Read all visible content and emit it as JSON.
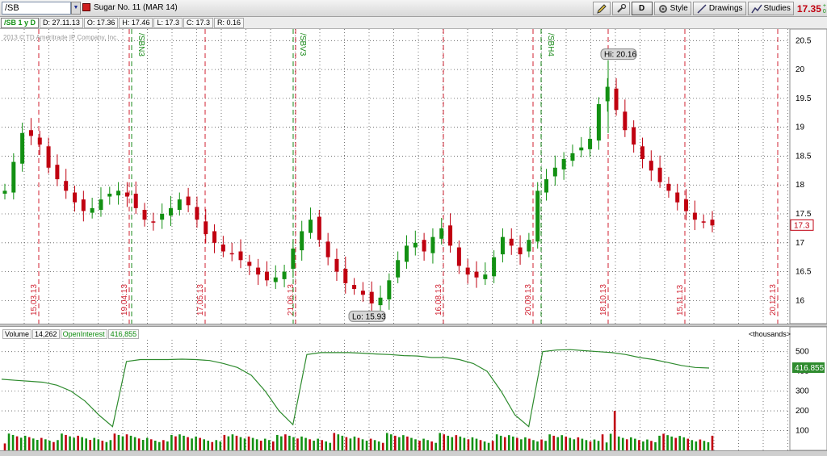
{
  "toolbar": {
    "symbol": "/SB",
    "instrument_name": "Sugar No. 11 (MAR 14)",
    "aggregation": "D",
    "style_label": "Style",
    "drawings_label": "Drawings",
    "studies_label": "Studies",
    "last_price": "17.35",
    "last_change_sign": "+",
    "last_change_extra": "0"
  },
  "infobar": {
    "symbol_period": "/SB 1 y D",
    "date": "D: 27.11.13",
    "open": "O: 17.36",
    "high": "H: 17.46",
    "low": "L: 17.3",
    "close": "C: 17.3",
    "range": "R: 0.16"
  },
  "copyright": "2013 © TD Ameritrade IP Company, Inc.",
  "price_pane": {
    "current_price_tag": "17.3",
    "hi_label": "Hi: 20.16",
    "lo_label": "Lo: 15.93"
  },
  "volume_pane": {
    "volume_label": "Volume",
    "volume_value": "14,262",
    "oi_label": "OpenInterest",
    "oi_value": "416,855",
    "units_label": "<thousands>",
    "oi_tag": "416.855"
  },
  "colors": {
    "up": "#129012",
    "down": "#c00010",
    "grid": "#555555",
    "expiration_line": "#d02030",
    "contract_line": "#1a8a1a",
    "oi_line": "#2e8b2e"
  },
  "chart_data": [
    {
      "type": "candlestick",
      "title": "Sugar No. 11 (MAR 14)",
      "x_axis": "date",
      "ylim": [
        15.6,
        20.7
      ],
      "y_ticks": [
        "16",
        "16.5",
        "17",
        "17.5",
        "18",
        "18.5",
        "19",
        "19.5",
        "20",
        "20.5"
      ],
      "grid": true,
      "hi": 20.16,
      "lo": 15.93,
      "last": 17.3,
      "event_labels": [
        "15.03.13",
        "19.04.13",
        "17.05.13",
        "21.06.13",
        "16.08.13",
        "20.09.13",
        "18.10.13",
        "15.11.13",
        "20.12.13"
      ],
      "contract_labels": [
        "/SBN3",
        "/SBV3",
        "/SBH4"
      ],
      "series": [
        {
          "name": "close_approx",
          "values": [
            17.9,
            18.4,
            18.9,
            18.85,
            18.7,
            18.3,
            18.1,
            17.9,
            17.7,
            17.55,
            17.6,
            17.75,
            17.85,
            17.9,
            17.8,
            17.6,
            17.4,
            17.35,
            17.5,
            17.6,
            17.75,
            17.65,
            17.4,
            17.15,
            17.0,
            16.85,
            16.8,
            16.7,
            16.6,
            16.45,
            16.35,
            16.4,
            16.5,
            16.9,
            17.2,
            17.4,
            17.05,
            16.75,
            16.5,
            16.3,
            16.2,
            16.1,
            15.95,
            16.05,
            16.35,
            16.7,
            16.95,
            17.0,
            16.85,
            17.1,
            17.25,
            16.95,
            16.6,
            16.45,
            16.4,
            16.45,
            16.75,
            17.1,
            16.95,
            16.8,
            17.05,
            17.9,
            18.1,
            18.3,
            18.45,
            18.55,
            18.65,
            18.8,
            19.4,
            19.7,
            19.3,
            18.95,
            18.7,
            18.45,
            18.25,
            18.05,
            17.9,
            17.7,
            17.55,
            17.4,
            17.35,
            17.3
          ]
        }
      ]
    },
    {
      "type": "bar",
      "title": "Volume / OpenInterest",
      "units": "thousands",
      "ylim": [
        0,
        560
      ],
      "y_ticks": [
        "100",
        "200",
        "300",
        "400",
        "500"
      ],
      "grid": true,
      "series": [
        {
          "name": "Volume",
          "last": 14262
        },
        {
          "name": "OpenInterest",
          "last": 416855,
          "values": [
            360,
            355,
            350,
            345,
            330,
            300,
            250,
            180,
            120,
            450,
            460,
            460,
            460,
            462,
            460,
            455,
            440,
            420,
            380,
            300,
            200,
            130,
            485,
            495,
            495,
            495,
            492,
            488,
            485,
            480,
            478,
            470,
            470,
            460,
            440,
            400,
            300,
            180,
            120,
            500,
            508,
            510,
            505,
            500,
            495,
            485,
            470,
            460,
            445,
            430,
            420,
            417
          ]
        }
      ]
    }
  ]
}
